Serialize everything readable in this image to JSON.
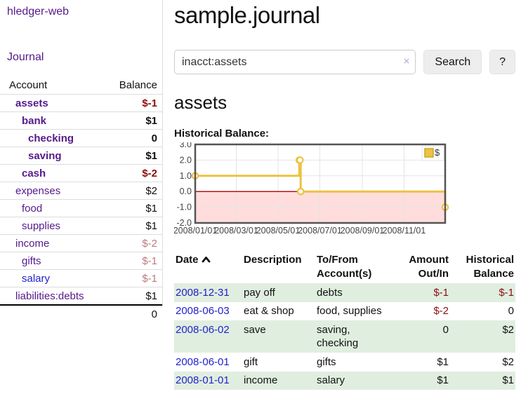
{
  "sidebar": {
    "app_title": "hledger-web",
    "journal_label": "Journal",
    "accounts": {
      "header": {
        "account": "Account",
        "balance": "Balance"
      },
      "rows": [
        {
          "name": "assets",
          "depth": 1,
          "bold": true,
          "link_tone": "visited",
          "balance": "$-1",
          "balance_tone": "negative"
        },
        {
          "name": "bank",
          "depth": 2,
          "bold": true,
          "link_tone": "visited",
          "balance": "$1",
          "balance_tone": "normal"
        },
        {
          "name": "checking",
          "depth": 3,
          "bold": true,
          "link_tone": "visited",
          "balance": "0",
          "balance_tone": "normal"
        },
        {
          "name": "saving",
          "depth": 3,
          "bold": true,
          "link_tone": "visited",
          "balance": "$1",
          "balance_tone": "normal"
        },
        {
          "name": "cash",
          "depth": 2,
          "bold": true,
          "link_tone": "visited",
          "balance": "$-2",
          "balance_tone": "negative"
        },
        {
          "name": "expenses",
          "depth": 1,
          "bold": false,
          "link_tone": "visited",
          "balance": "$2",
          "balance_tone": "normal"
        },
        {
          "name": "food",
          "depth": 2,
          "bold": false,
          "link_tone": "visited",
          "balance": "$1",
          "balance_tone": "normal"
        },
        {
          "name": "supplies",
          "depth": 2,
          "bold": false,
          "link_tone": "visited",
          "balance": "$1",
          "balance_tone": "normal"
        },
        {
          "name": "income",
          "depth": 1,
          "bold": false,
          "link_tone": "visited",
          "balance": "$-2",
          "balance_tone": "negative-faded"
        },
        {
          "name": "gifts",
          "depth": 2,
          "bold": false,
          "link_tone": "visited",
          "balance": "$-1",
          "balance_tone": "negative-faded"
        },
        {
          "name": "salary",
          "depth": 2,
          "bold": false,
          "link_tone": "unvisited",
          "balance": "$-1",
          "balance_tone": "negative-faded"
        },
        {
          "name": "liabilities:debts",
          "depth": 1,
          "bold": false,
          "link_tone": "visited",
          "balance": "$1",
          "balance_tone": "normal"
        }
      ],
      "total": "0"
    }
  },
  "header": {
    "title": "sample.journal",
    "search": {
      "value": "inacct:assets",
      "clear_icon": "×",
      "button_label": "Search",
      "help_label": "?"
    }
  },
  "main": {
    "account_heading": "assets",
    "chart_label": "Historical Balance:"
  },
  "chart_data": {
    "type": "line",
    "step": true,
    "title": "Historical Balance",
    "series": [
      {
        "name": "$",
        "points": [
          [
            "2008-01-01",
            1
          ],
          [
            "2008-06-01",
            2
          ],
          [
            "2008-06-02",
            2
          ],
          [
            "2008-06-03",
            0
          ],
          [
            "2008-12-31",
            -1
          ]
        ]
      }
    ],
    "x_range": [
      "2008-01-01",
      "2008-12-31"
    ],
    "x_tick_labels": [
      "2008/01/01",
      "2008/03/01",
      "2008/05/01",
      "2008/07/01",
      "2008/09/01",
      "2008/11/01"
    ],
    "y_ticks": [
      3.0,
      2.0,
      1.0,
      0.0,
      -1.0,
      -2.0
    ],
    "ylim": [
      -2,
      3
    ],
    "grid": true,
    "legend": {
      "label": "$",
      "position": "top-right"
    },
    "colors": {
      "line": "#edc240",
      "marker_fill": "#ffffff",
      "negative_region": "#ffdddd",
      "zero_line": "#aa0000",
      "grid": "#e4e4e4",
      "border": "#545454",
      "axis_text": "#444444"
    }
  },
  "register": {
    "headers": {
      "date": "Date",
      "description": "Description",
      "tofrom_line1": "To/From",
      "tofrom_line2": "Account(s)",
      "amount_line1": "Amount",
      "amount_line2": "Out/In",
      "balance_line1": "Historical",
      "balance_line2": "Balance"
    },
    "rows": [
      {
        "date": "2008-12-31",
        "description": "pay off",
        "accounts": "debts",
        "amount": "$-1",
        "amount_tone": "negative",
        "balance": "$-1",
        "balance_tone": "negative"
      },
      {
        "date": "2008-06-03",
        "description": "eat & shop",
        "accounts": "food, supplies",
        "amount": "$-2",
        "amount_tone": "negative",
        "balance": "0",
        "balance_tone": "normal"
      },
      {
        "date": "2008-06-02",
        "description": "save",
        "accounts": "saving, checking",
        "amount": "0",
        "amount_tone": "normal",
        "balance": "$2",
        "balance_tone": "normal"
      },
      {
        "date": "2008-06-01",
        "description": "gift",
        "accounts": "gifts",
        "amount": "$1",
        "amount_tone": "normal",
        "balance": "$2",
        "balance_tone": "normal"
      },
      {
        "date": "2008-01-01",
        "description": "income",
        "accounts": "salary",
        "amount": "$1",
        "amount_tone": "normal",
        "balance": "$1",
        "balance_tone": "normal"
      }
    ]
  }
}
